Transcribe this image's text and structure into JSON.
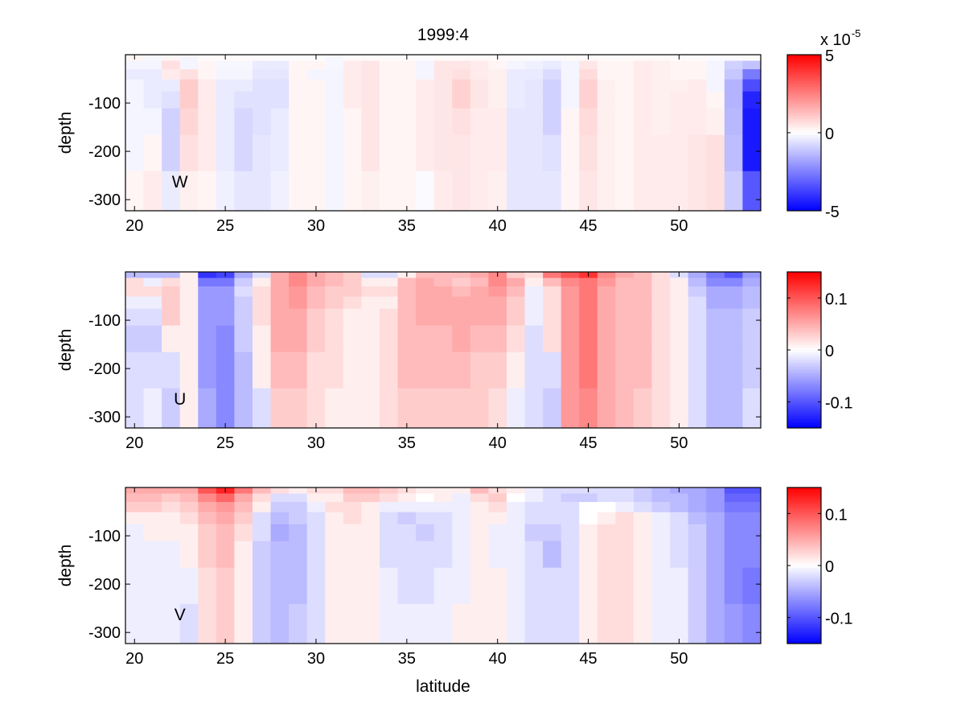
{
  "chart_data": {
    "type": "heatmap",
    "title": "1999:4",
    "xlabel": "latitude",
    "x": [
      20,
      21,
      22,
      23,
      24,
      25,
      26,
      27,
      28,
      29,
      30,
      31,
      32,
      33,
      34,
      35,
      36,
      37,
      38,
      39,
      40,
      41,
      42,
      43,
      44,
      45,
      46,
      47,
      48,
      49,
      50,
      51,
      52,
      53,
      54
    ],
    "xlim": [
      19.5,
      54.5
    ],
    "xticks": [
      20,
      25,
      30,
      35,
      40,
      45,
      50
    ],
    "depth_levels": [
      -5,
      -20,
      -40,
      -62,
      -90,
      -132,
      -200,
      -282
    ],
    "ylim": [
      -323,
      0
    ],
    "yticks": [
      -100,
      -200,
      -300
    ],
    "colormap": {
      "negative": "#0000ff",
      "zero": "#ffffff",
      "positive": "#ff0000"
    },
    "panels": [
      {
        "name": "W",
        "label": "W",
        "ylabel": "depth",
        "clim": [
          -5,
          5
        ],
        "colorbar_ticks": [
          -5,
          0,
          5
        ],
        "colorbar_exponent": "x 10",
        "colorbar_exponent_power": "-5",
        "values": [
          [
            0.2,
            -0.15,
            0.2,
            -0.2,
            0.1,
            0.1,
            0.1,
            0.1,
            -0.05,
            -0.05,
            -0.05,
            -0.15,
            0.1,
            0.1,
            0.1,
            0.1,
            -0.05,
            0.1,
            0.1,
            0.1,
            0.1,
            0.1,
            -0.05,
            -0.1,
            0.1,
            0.1,
            0.1,
            0.1,
            0.1,
            0.1,
            0.1,
            0.1,
            -0.1,
            -0.1,
            0.1
          ],
          [
            -0.2,
            -0.2,
            0.6,
            -0.2,
            0.2,
            -0.15,
            -0.15,
            -0.4,
            -0.4,
            0.2,
            0.2,
            -0.15,
            0.4,
            0.5,
            0.2,
            0.2,
            -0.2,
            0.5,
            0.5,
            0.4,
            0.2,
            -0.2,
            -0.3,
            -0.4,
            -0.2,
            0.5,
            0.2,
            0.2,
            0.4,
            0.3,
            0.2,
            0.2,
            -0.2,
            -0.9,
            -1.2
          ],
          [
            -0.4,
            -0.4,
            0.4,
            0.6,
            0.2,
            -0.2,
            -0.2,
            -0.5,
            -0.5,
            0.2,
            -0.2,
            -0.2,
            0.4,
            0.5,
            0.2,
            0.2,
            -0.2,
            0.5,
            0.6,
            0.4,
            0.3,
            -0.4,
            -0.4,
            -0.7,
            -0.2,
            0.7,
            0.2,
            0.2,
            0.4,
            0.3,
            0.2,
            0.2,
            -0.2,
            -1.1,
            -2.6
          ],
          [
            -0.2,
            -0.4,
            -0.4,
            1.0,
            0.4,
            -0.4,
            -0.4,
            -0.6,
            -0.6,
            0.2,
            0.2,
            -0.2,
            0.4,
            0.5,
            0.2,
            0.2,
            0.4,
            0.5,
            0.9,
            0.5,
            0.3,
            -0.4,
            -0.5,
            -0.9,
            -0.2,
            0.9,
            0.3,
            0.2,
            0.4,
            0.3,
            0.3,
            0.4,
            -0.2,
            -1.5,
            -3.5
          ],
          [
            -0.2,
            -0.4,
            -0.6,
            1.0,
            0.4,
            -0.4,
            -0.6,
            -0.6,
            -0.6,
            0.2,
            0.2,
            -0.2,
            0.4,
            0.5,
            0.2,
            0.2,
            0.4,
            0.5,
            0.9,
            0.5,
            0.3,
            -0.4,
            -0.5,
            -0.9,
            -0.2,
            0.9,
            0.3,
            0.2,
            0.4,
            0.3,
            0.4,
            0.4,
            0.2,
            -1.5,
            -4.3
          ],
          [
            -0.2,
            -0.2,
            -0.9,
            0.8,
            0.4,
            -0.4,
            -0.8,
            -0.6,
            -0.4,
            0.2,
            0.2,
            -0.2,
            0.2,
            0.5,
            0.2,
            0.2,
            0.4,
            0.5,
            0.6,
            0.4,
            0.4,
            -0.5,
            -0.5,
            -0.9,
            0.2,
            0.7,
            0.3,
            0.2,
            0.4,
            0.3,
            0.4,
            0.4,
            0.3,
            -1.4,
            -4.5
          ],
          [
            -0.2,
            0.2,
            -0.9,
            0.6,
            0.4,
            -0.4,
            -0.8,
            -0.5,
            -0.4,
            0.2,
            0.2,
            -0.2,
            0.2,
            0.5,
            0.2,
            0.2,
            0.4,
            0.5,
            0.5,
            0.4,
            0.4,
            -0.5,
            -0.5,
            -0.6,
            0.2,
            0.6,
            0.3,
            0.2,
            0.4,
            0.4,
            0.4,
            0.5,
            0.6,
            -1.3,
            -4.5
          ],
          [
            0.2,
            0.4,
            -0.4,
            0.3,
            0.2,
            -0.3,
            -0.5,
            -0.5,
            -0.3,
            0.2,
            0.2,
            -0.2,
            0.2,
            0.3,
            0.2,
            0.2,
            -0.1,
            0.4,
            0.5,
            0.4,
            0.3,
            -0.5,
            -0.5,
            -0.5,
            0.2,
            0.5,
            0.3,
            0.2,
            0.4,
            0.4,
            0.4,
            0.5,
            0.6,
            -1.0,
            -3.3
          ]
        ]
      },
      {
        "name": "U",
        "label": "U",
        "ylabel": "depth",
        "clim": [
          -0.15,
          0.15
        ],
        "colorbar_ticks": [
          -0.1,
          0,
          0.1
        ],
        "values": [
          [
            -0.04,
            -0.04,
            -0.04,
            0.01,
            -0.12,
            -0.11,
            -0.05,
            -0.02,
            0.05,
            0.07,
            0.05,
            0.04,
            0.03,
            -0.02,
            -0.02,
            0.01,
            0.04,
            0.04,
            0.04,
            0.05,
            0.07,
            0.03,
            0.02,
            0.08,
            0.1,
            0.12,
            0.07,
            0.05,
            0.04,
            0.02,
            -0.02,
            -0.05,
            -0.08,
            -0.1,
            -0.06
          ],
          [
            0.02,
            -0.01,
            0.02,
            0.01,
            -0.08,
            -0.08,
            -0.03,
            0.01,
            0.05,
            0.07,
            0.05,
            0.04,
            0.03,
            0.01,
            0.01,
            0.04,
            0.05,
            0.04,
            0.03,
            0.04,
            0.07,
            0.05,
            0.01,
            0.04,
            0.07,
            0.08,
            0.06,
            0.04,
            0.04,
            0.02,
            0.01,
            -0.04,
            -0.07,
            -0.07,
            -0.05
          ],
          [
            0.02,
            0.02,
            0.03,
            0.01,
            -0.06,
            -0.06,
            -0.02,
            0.02,
            0.05,
            0.06,
            0.04,
            0.03,
            0.03,
            0.02,
            0.02,
            0.04,
            0.05,
            0.05,
            0.04,
            0.05,
            0.06,
            0.04,
            -0.01,
            0.02,
            0.06,
            0.08,
            0.05,
            0.04,
            0.04,
            0.02,
            0.01,
            -0.03,
            -0.05,
            -0.05,
            -0.04
          ],
          [
            -0.01,
            -0.01,
            0.03,
            0.01,
            -0.06,
            -0.06,
            -0.03,
            0.02,
            0.05,
            0.06,
            0.04,
            0.03,
            0.02,
            0.01,
            0.01,
            0.04,
            0.05,
            0.05,
            0.05,
            0.05,
            0.05,
            0.03,
            -0.01,
            0.02,
            0.06,
            0.08,
            0.05,
            0.04,
            0.04,
            0.02,
            0.01,
            -0.02,
            -0.05,
            -0.05,
            -0.04
          ],
          [
            -0.02,
            -0.02,
            0.03,
            0.01,
            -0.06,
            -0.06,
            -0.03,
            0.02,
            0.05,
            0.05,
            0.03,
            0.02,
            0.01,
            0.01,
            0.02,
            0.04,
            0.05,
            0.05,
            0.05,
            0.05,
            0.05,
            0.03,
            -0.01,
            0.02,
            0.06,
            0.08,
            0.05,
            0.04,
            0.04,
            0.02,
            0.01,
            -0.02,
            -0.04,
            -0.04,
            -0.03
          ],
          [
            -0.03,
            -0.03,
            0.01,
            0.01,
            -0.06,
            -0.07,
            -0.03,
            0.01,
            0.05,
            0.05,
            0.03,
            0.02,
            0.01,
            0.01,
            0.02,
            0.04,
            0.04,
            0.04,
            0.05,
            0.04,
            0.04,
            0.02,
            -0.02,
            0.02,
            0.06,
            0.08,
            0.05,
            0.04,
            0.04,
            0.02,
            0.01,
            -0.02,
            -0.04,
            -0.04,
            -0.03
          ],
          [
            -0.02,
            -0.02,
            -0.02,
            0.01,
            -0.06,
            -0.07,
            -0.04,
            0.01,
            0.04,
            0.04,
            0.02,
            0.02,
            0.01,
            0.01,
            0.02,
            0.04,
            0.04,
            0.04,
            0.04,
            0.03,
            0.03,
            0.01,
            -0.02,
            -0.02,
            0.06,
            0.08,
            0.05,
            0.04,
            0.04,
            0.02,
            0.01,
            -0.02,
            -0.04,
            -0.04,
            -0.03
          ],
          [
            -0.02,
            -0.01,
            -0.03,
            0.01,
            -0.05,
            -0.07,
            -0.04,
            -0.02,
            0.03,
            0.03,
            0.02,
            0.01,
            0.01,
            0.01,
            0.02,
            0.03,
            0.03,
            0.03,
            0.03,
            0.03,
            0.02,
            -0.01,
            -0.02,
            -0.03,
            0.06,
            0.07,
            0.05,
            0.04,
            0.03,
            0.02,
            0.01,
            -0.02,
            -0.04,
            -0.04,
            -0.02
          ]
        ]
      },
      {
        "name": "V",
        "label": "V",
        "ylabel": "depth",
        "clim": [
          -0.15,
          0.15
        ],
        "colorbar_ticks": [
          -0.1,
          0,
          0.1
        ],
        "values": [
          [
            0.05,
            0.05,
            0.05,
            0.05,
            0.1,
            0.13,
            0.08,
            0.04,
            0.02,
            0.01,
            0.02,
            0.02,
            0.04,
            0.04,
            0.03,
            0.02,
            0.01,
            0.01,
            0.01,
            0.04,
            0.02,
            0.01,
            -0.01,
            -0.02,
            -0.02,
            -0.02,
            -0.02,
            -0.02,
            -0.03,
            -0.04,
            -0.05,
            -0.05,
            -0.06,
            -0.1,
            -0.1
          ],
          [
            0.04,
            0.04,
            0.03,
            0.04,
            0.07,
            0.09,
            0.05,
            0.02,
            -0.02,
            -0.02,
            0.01,
            0.01,
            0.03,
            0.03,
            0.02,
            0.01,
            0.0,
            0.01,
            -0.01,
            0.02,
            0.03,
            0.0,
            -0.01,
            -0.02,
            -0.03,
            -0.03,
            -0.02,
            -0.02,
            -0.03,
            -0.04,
            -0.04,
            -0.05,
            -0.06,
            -0.09,
            -0.09
          ],
          [
            0.03,
            0.03,
            0.02,
            0.03,
            0.05,
            0.06,
            0.04,
            0.01,
            -0.03,
            -0.03,
            -0.01,
            0.02,
            0.02,
            0.01,
            -0.01,
            -0.01,
            -0.01,
            -0.01,
            -0.01,
            0.01,
            0.02,
            -0.01,
            -0.02,
            -0.02,
            -0.02,
            0.0,
            0.0,
            -0.01,
            -0.02,
            -0.03,
            -0.04,
            -0.05,
            -0.06,
            -0.08,
            -0.08
          ],
          [
            0.01,
            0.01,
            0.01,
            0.02,
            0.04,
            0.05,
            0.03,
            -0.02,
            -0.04,
            -0.03,
            -0.02,
            0.01,
            0.02,
            0.01,
            -0.02,
            -0.03,
            -0.02,
            -0.02,
            -0.01,
            0.01,
            0.01,
            -0.01,
            -0.02,
            -0.02,
            -0.02,
            0.0,
            0.01,
            0.02,
            0.01,
            -0.01,
            -0.02,
            -0.04,
            -0.05,
            -0.07,
            -0.07
          ],
          [
            -0.01,
            0.01,
            0.01,
            0.01,
            0.03,
            0.04,
            0.02,
            -0.02,
            -0.05,
            -0.04,
            -0.02,
            0.01,
            0.01,
            0.01,
            -0.02,
            -0.02,
            -0.03,
            -0.02,
            -0.01,
            0.01,
            -0.01,
            -0.01,
            -0.03,
            -0.03,
            -0.02,
            0.01,
            0.02,
            0.02,
            0.01,
            -0.01,
            -0.02,
            -0.03,
            -0.05,
            -0.07,
            -0.07
          ],
          [
            -0.01,
            -0.01,
            -0.01,
            0.01,
            0.03,
            0.04,
            0.01,
            -0.03,
            -0.04,
            -0.04,
            -0.02,
            0.01,
            0.01,
            0.01,
            -0.02,
            -0.02,
            -0.02,
            -0.02,
            -0.01,
            0.01,
            -0.01,
            -0.01,
            -0.02,
            -0.04,
            -0.02,
            0.01,
            0.02,
            0.02,
            0.01,
            -0.01,
            -0.02,
            -0.03,
            -0.05,
            -0.07,
            -0.07
          ],
          [
            -0.01,
            -0.01,
            -0.01,
            -0.01,
            0.02,
            0.03,
            0.01,
            -0.03,
            -0.04,
            -0.04,
            -0.02,
            0.01,
            0.01,
            0.01,
            -0.01,
            -0.02,
            -0.02,
            -0.01,
            -0.01,
            0.01,
            0.01,
            -0.01,
            -0.02,
            -0.02,
            -0.02,
            0.01,
            0.02,
            0.02,
            0.01,
            -0.01,
            -0.01,
            -0.03,
            -0.05,
            -0.07,
            -0.08
          ],
          [
            -0.01,
            -0.01,
            -0.01,
            -0.02,
            0.02,
            0.03,
            0.01,
            -0.03,
            -0.04,
            -0.03,
            -0.02,
            0.01,
            0.01,
            0.01,
            -0.01,
            -0.01,
            -0.01,
            -0.01,
            0.01,
            0.01,
            0.01,
            -0.01,
            -0.02,
            -0.02,
            -0.02,
            0.01,
            0.02,
            0.02,
            0.01,
            -0.01,
            -0.01,
            -0.03,
            -0.05,
            -0.06,
            -0.07
          ]
        ]
      }
    ]
  }
}
